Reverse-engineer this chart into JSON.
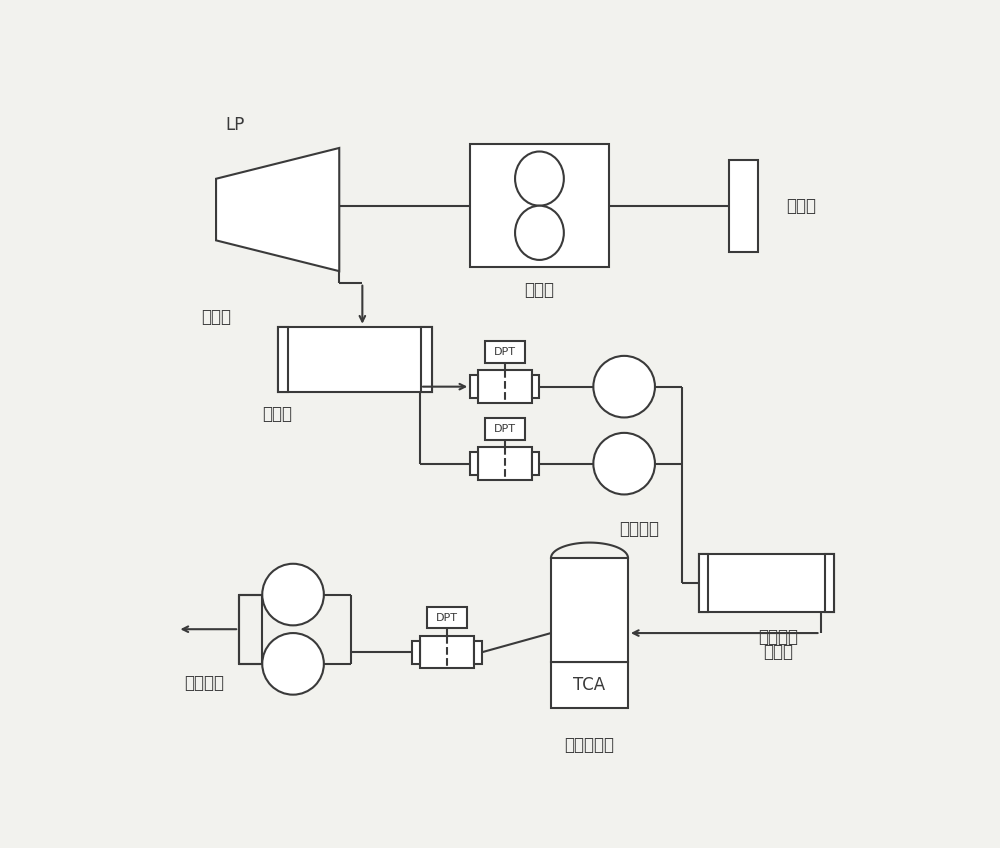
{
  "bg_color": "#f2f2ee",
  "line_color": "#3a3a3a",
  "label_LP": "LP",
  "label_turbine": "汽轮机",
  "label_condenser": "凝汽器",
  "label_vacuum_pump": "真空泵",
  "label_exhaust": "排气管",
  "label_condensate_pump": "凝结水泵",
  "label_seal_cooler1": "轴封蒸气",
  "label_seal_cooler2": "冷却器",
  "label_air_cooler": "空气冷却器",
  "label_waste_heat": "余热锅炉",
  "label_DPT": "DPT",
  "label_TCA": "TCA",
  "font_size": 12,
  "font_size_small": 8
}
